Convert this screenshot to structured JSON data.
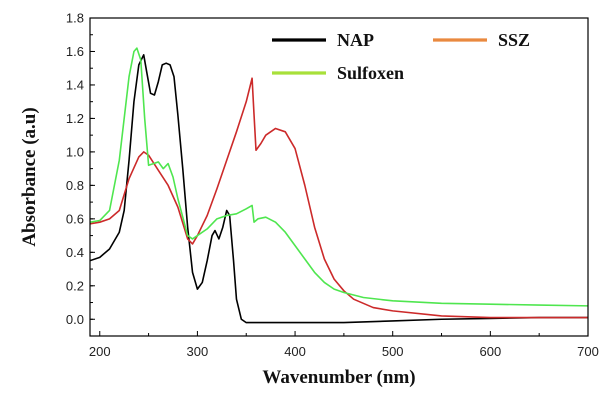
{
  "chart_data": {
    "type": "line",
    "title": "",
    "xlabel": "Wavenumber (nm)",
    "ylabel": "Absorbance (a.u)",
    "xlim": [
      190,
      700
    ],
    "ylim": [
      -0.1,
      1.8
    ],
    "xticks": [
      200,
      300,
      400,
      500,
      600,
      700
    ],
    "yticks": [
      0.0,
      0.2,
      0.4,
      0.6,
      0.8,
      1.0,
      1.2,
      1.4,
      1.6,
      1.8
    ],
    "ytick_labels": [
      "0.0",
      "0.2",
      "0.4",
      "0.6",
      "0.8",
      "1.0",
      "1.2",
      "1.4",
      "1.6",
      "1.8"
    ],
    "grid": false,
    "legend_position": "top-right",
    "series": [
      {
        "name": "NAP",
        "color": "#000000",
        "points": [
          [
            190,
            0.35
          ],
          [
            200,
            0.37
          ],
          [
            210,
            0.42
          ],
          [
            220,
            0.52
          ],
          [
            225,
            0.65
          ],
          [
            230,
            0.95
          ],
          [
            235,
            1.3
          ],
          [
            240,
            1.52
          ],
          [
            245,
            1.58
          ],
          [
            248,
            1.48
          ],
          [
            252,
            1.35
          ],
          [
            256,
            1.34
          ],
          [
            260,
            1.42
          ],
          [
            264,
            1.52
          ],
          [
            268,
            1.53
          ],
          [
            272,
            1.52
          ],
          [
            276,
            1.45
          ],
          [
            280,
            1.22
          ],
          [
            285,
            0.9
          ],
          [
            290,
            0.55
          ],
          [
            295,
            0.28
          ],
          [
            300,
            0.18
          ],
          [
            305,
            0.22
          ],
          [
            310,
            0.35
          ],
          [
            315,
            0.5
          ],
          [
            318,
            0.53
          ],
          [
            322,
            0.48
          ],
          [
            326,
            0.55
          ],
          [
            330,
            0.65
          ],
          [
            333,
            0.62
          ],
          [
            337,
            0.35
          ],
          [
            340,
            0.12
          ],
          [
            345,
            0.0
          ],
          [
            350,
            -0.02
          ],
          [
            360,
            -0.02
          ],
          [
            400,
            -0.02
          ],
          [
            450,
            -0.02
          ],
          [
            500,
            -0.01
          ],
          [
            550,
            0.0
          ],
          [
            600,
            0.005
          ],
          [
            650,
            0.01
          ],
          [
            700,
            0.01
          ]
        ]
      },
      {
        "name": "SSZ",
        "color": "#cc2a2a",
        "points": [
          [
            190,
            0.57
          ],
          [
            200,
            0.58
          ],
          [
            210,
            0.6
          ],
          [
            220,
            0.65
          ],
          [
            230,
            0.84
          ],
          [
            240,
            0.97
          ],
          [
            245,
            1.0
          ],
          [
            250,
            0.98
          ],
          [
            260,
            0.89
          ],
          [
            270,
            0.8
          ],
          [
            280,
            0.67
          ],
          [
            290,
            0.48
          ],
          [
            295,
            0.45
          ],
          [
            300,
            0.5
          ],
          [
            310,
            0.62
          ],
          [
            320,
            0.78
          ],
          [
            330,
            0.95
          ],
          [
            340,
            1.12
          ],
          [
            350,
            1.3
          ],
          [
            356,
            1.44
          ],
          [
            358,
            1.22
          ],
          [
            360,
            1.01
          ],
          [
            365,
            1.05
          ],
          [
            370,
            1.1
          ],
          [
            380,
            1.14
          ],
          [
            390,
            1.12
          ],
          [
            400,
            1.02
          ],
          [
            410,
            0.8
          ],
          [
            420,
            0.55
          ],
          [
            430,
            0.36
          ],
          [
            440,
            0.24
          ],
          [
            450,
            0.17
          ],
          [
            460,
            0.12
          ],
          [
            480,
            0.07
          ],
          [
            500,
            0.05
          ],
          [
            550,
            0.02
          ],
          [
            600,
            0.01
          ],
          [
            650,
            0.01
          ],
          [
            700,
            0.01
          ]
        ]
      },
      {
        "name": "Sulfoxen",
        "color": "#4fe64f",
        "points": [
          [
            190,
            0.58
          ],
          [
            200,
            0.59
          ],
          [
            210,
            0.65
          ],
          [
            220,
            0.95
          ],
          [
            230,
            1.45
          ],
          [
            235,
            1.6
          ],
          [
            238,
            1.62
          ],
          [
            242,
            1.55
          ],
          [
            246,
            1.2
          ],
          [
            250,
            0.92
          ],
          [
            255,
            0.93
          ],
          [
            260,
            0.94
          ],
          [
            265,
            0.9
          ],
          [
            270,
            0.93
          ],
          [
            275,
            0.85
          ],
          [
            280,
            0.72
          ],
          [
            290,
            0.5
          ],
          [
            295,
            0.48
          ],
          [
            300,
            0.5
          ],
          [
            310,
            0.54
          ],
          [
            320,
            0.6
          ],
          [
            330,
            0.62
          ],
          [
            340,
            0.63
          ],
          [
            350,
            0.66
          ],
          [
            356,
            0.68
          ],
          [
            358,
            0.58
          ],
          [
            362,
            0.6
          ],
          [
            370,
            0.61
          ],
          [
            380,
            0.58
          ],
          [
            390,
            0.52
          ],
          [
            400,
            0.44
          ],
          [
            410,
            0.36
          ],
          [
            420,
            0.28
          ],
          [
            430,
            0.22
          ],
          [
            440,
            0.18
          ],
          [
            450,
            0.16
          ],
          [
            470,
            0.13
          ],
          [
            500,
            0.11
          ],
          [
            550,
            0.095
          ],
          [
            600,
            0.09
          ],
          [
            650,
            0.085
          ],
          [
            700,
            0.08
          ]
        ]
      }
    ]
  }
}
